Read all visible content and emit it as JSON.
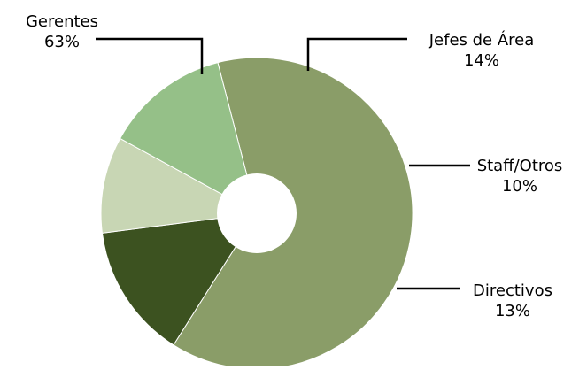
{
  "chart_data": {
    "type": "pie",
    "variant": "donut",
    "title": "",
    "slices": [
      {
        "label": "Gerentes",
        "percent_text": "63%",
        "value": 63,
        "color": "#8a9d68"
      },
      {
        "label": "Jefes de Área",
        "percent_text": "14%",
        "value": 14,
        "color": "#3c5220"
      },
      {
        "label": "Staff/Otros",
        "percent_text": "10%",
        "value": 10,
        "color": "#c8d6b4"
      },
      {
        "label": "Directivos",
        "percent_text": "13%",
        "value": 13,
        "color": "#95c088"
      }
    ],
    "legend": "none",
    "label_style": "callout-lines"
  }
}
